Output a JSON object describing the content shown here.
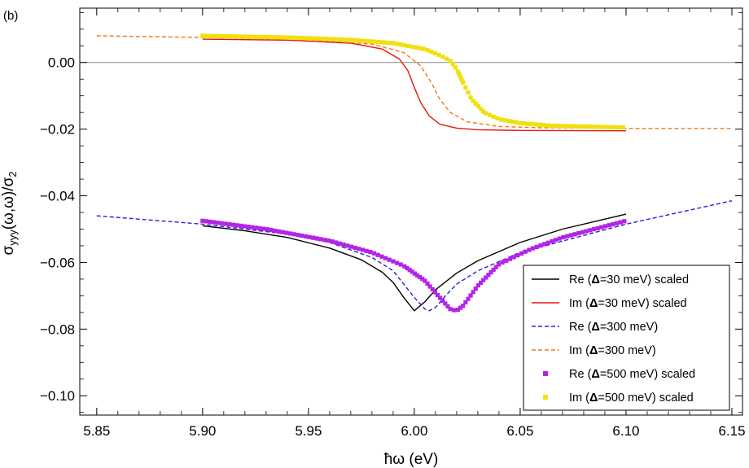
{
  "chart_data": {
    "type": "line",
    "panel_label": "(b)",
    "xlabel": "ħω (eV)",
    "ylabel": "σyyy(ω,ω)/σ2",
    "xlim": [
      5.842,
      6.155
    ],
    "ylim": [
      -0.1058,
      0.0163
    ],
    "x_ticks": [
      5.85,
      5.9,
      5.95,
      6.0,
      6.05,
      6.1,
      6.15
    ],
    "x_tick_labels": [
      "5.85",
      "5.90",
      "5.95",
      "6.00",
      "6.05",
      "6.10",
      "6.15"
    ],
    "y_ticks": [
      0.0,
      -0.02,
      -0.04,
      -0.06,
      -0.08,
      -0.1
    ],
    "y_tick_labels": [
      "0.00",
      "−0.02",
      "−0.04",
      "−0.06",
      "−0.08",
      "−0.10"
    ],
    "zero_line": true,
    "legend_position": "bottom-right",
    "series": [
      {
        "name": "Re (Δ=30 meV) scaled",
        "legend": {
          "pre": "Re (",
          "delta": "Δ",
          "post": "=30 meV) scaled"
        },
        "style": "solid",
        "color": "#000000",
        "x": [
          5.9,
          5.92,
          5.94,
          5.96,
          5.975,
          5.985,
          5.99,
          5.995,
          6.0,
          6.005,
          6.01,
          6.02,
          6.03,
          6.05,
          6.07,
          6.1
        ],
        "y": [
          -0.049,
          -0.0505,
          -0.0525,
          -0.0557,
          -0.0592,
          -0.063,
          -0.066,
          -0.0705,
          -0.0745,
          -0.0718,
          -0.0682,
          -0.0632,
          -0.0595,
          -0.054,
          -0.05,
          -0.0455
        ]
      },
      {
        "name": "Im (Δ=30 meV) scaled",
        "legend": {
          "pre": "Im (",
          "delta": "Δ",
          "post": "=30 meV) scaled"
        },
        "style": "solid",
        "color": "#e8140c",
        "x": [
          5.9,
          5.94,
          5.97,
          5.985,
          5.993,
          5.997,
          6.0,
          6.003,
          6.007,
          6.012,
          6.02,
          6.03,
          6.05,
          6.1
        ],
        "y": [
          0.007,
          0.0067,
          0.0058,
          0.004,
          0.001,
          -0.0025,
          -0.0075,
          -0.012,
          -0.016,
          -0.0185,
          -0.0197,
          -0.0202,
          -0.0204,
          -0.0205
        ]
      },
      {
        "name": "Re (Δ=300 meV)",
        "legend": {
          "pre": "Re (",
          "delta": "Δ",
          "post": "=300 meV)"
        },
        "style": "dashed",
        "color": "#2a1ed8",
        "x": [
          5.85,
          5.9,
          5.94,
          5.96,
          5.98,
          5.99,
          5.995,
          6.0,
          6.005,
          6.007,
          6.01,
          6.015,
          6.02,
          6.03,
          6.05,
          6.1,
          6.15
        ],
        "y": [
          -0.046,
          -0.0485,
          -0.0515,
          -0.054,
          -0.0585,
          -0.0625,
          -0.0665,
          -0.0705,
          -0.074,
          -0.0745,
          -0.0735,
          -0.0698,
          -0.0665,
          -0.0625,
          -0.057,
          -0.0485,
          -0.0415
        ]
      },
      {
        "name": "Im (Δ=300 meV)",
        "legend": {
          "pre": "Im (",
          "delta": "Δ",
          "post": "=300 meV)"
        },
        "style": "dashed",
        "color": "#f07818",
        "x": [
          5.85,
          5.9,
          5.95,
          5.98,
          5.995,
          6.003,
          6.008,
          6.012,
          6.017,
          6.025,
          6.04,
          6.06,
          6.1,
          6.15
        ],
        "y": [
          0.008,
          0.0075,
          0.0068,
          0.0055,
          0.003,
          -0.001,
          -0.006,
          -0.011,
          -0.015,
          -0.0178,
          -0.0192,
          -0.0196,
          -0.0198,
          -0.0198
        ]
      },
      {
        "name": "Re (Δ=500 meV) scaled",
        "legend": {
          "pre": "Re (",
          "delta": "Δ",
          "post": "=500 meV) scaled"
        },
        "style": "markers",
        "color": "#b424e8",
        "x": [
          5.9,
          5.93,
          5.96,
          5.98,
          5.995,
          6.005,
          6.012,
          6.017,
          6.02,
          6.023,
          6.03,
          6.04,
          6.055,
          6.07,
          6.085,
          6.1
        ],
        "y": [
          -0.0475,
          -0.05,
          -0.0535,
          -0.057,
          -0.061,
          -0.0655,
          -0.0705,
          -0.074,
          -0.0745,
          -0.073,
          -0.067,
          -0.0605,
          -0.056,
          -0.0525,
          -0.05,
          -0.0475
        ]
      },
      {
        "name": "Im (Δ=500 meV) scaled",
        "legend": {
          "pre": "Im (",
          "delta": "Δ",
          "post": "=500 meV) scaled"
        },
        "style": "markers",
        "color": "#f0e010",
        "x": [
          5.9,
          5.94,
          5.97,
          5.99,
          6.005,
          6.012,
          6.017,
          6.02,
          6.023,
          6.027,
          6.033,
          6.04,
          6.05,
          6.065,
          6.1
        ],
        "y": [
          0.008,
          0.0075,
          0.0068,
          0.0058,
          0.004,
          0.0022,
          0.0005,
          -0.002,
          -0.006,
          -0.011,
          -0.015,
          -0.017,
          -0.0182,
          -0.019,
          -0.0195
        ]
      }
    ]
  }
}
